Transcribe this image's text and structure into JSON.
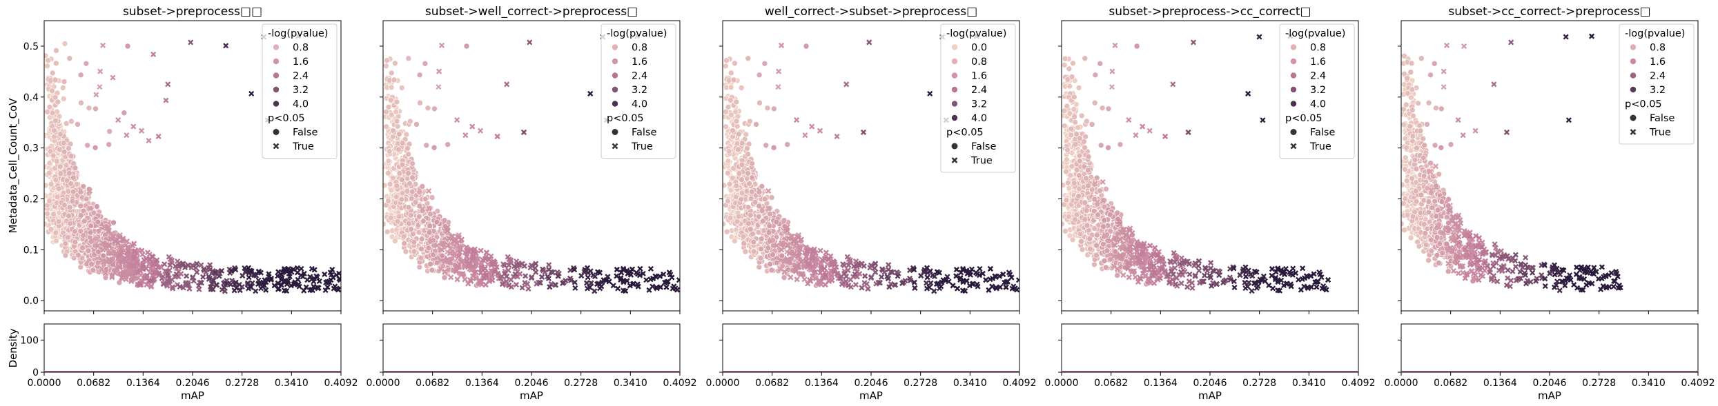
{
  "figure": {
    "background": "#ffffff"
  },
  "colors": {
    "palette_low": "#efd1c4",
    "palette_mid": "#c27d9b",
    "palette_high": "#2a1b3d",
    "legend_frame": "#cccccc"
  },
  "y_label": "Metadata_Cell_Count_CoV",
  "density_y_label": "Density",
  "x_label": "mAP",
  "x_ticks": [
    "0.0000",
    "0.0682",
    "0.1364",
    "0.2046",
    "0.2728",
    "0.3410",
    "0.4092"
  ],
  "y_ticks": [
    "0.0",
    "0.1",
    "0.2",
    "0.3",
    "0.4",
    "0.5"
  ],
  "density_y_ticks": [
    "0",
    "100"
  ],
  "chart_data": [
    {
      "type": "scatter",
      "title": "subset->preprocess□□",
      "xlim": [
        0,
        0.4092
      ],
      "ylim": [
        -0.02,
        0.55
      ],
      "hue": "-log(pvalue)",
      "style": "p<0.05",
      "legend": {
        "hue_title": "-log(pvalue)",
        "hue_levels": [
          "0.8",
          "1.6",
          "2.4",
          "3.2",
          "4.0"
        ],
        "style_title": "p<0.05",
        "style_levels": [
          "False",
          "True"
        ],
        "placement": "top-right"
      },
      "hue_max": 4.5,
      "n_points": 1500,
      "density": {
        "ylim": [
          0,
          150
        ]
      }
    },
    {
      "type": "scatter",
      "title": "subset->well_correct->preprocess□",
      "xlim": [
        0,
        0.4092
      ],
      "ylim": [
        -0.02,
        0.55
      ],
      "hue": "-log(pvalue)",
      "style": "p<0.05",
      "legend": {
        "hue_title": "-log(pvalue)",
        "hue_levels": [
          "0.8",
          "1.6",
          "2.4",
          "3.2",
          "4.0"
        ],
        "style_title": "p<0.05",
        "style_levels": [
          "False",
          "True"
        ],
        "placement": "top-right"
      },
      "hue_max": 4.5,
      "n_points": 1500,
      "density": {
        "ylim": [
          0,
          150
        ]
      }
    },
    {
      "type": "scatter",
      "title": "well_correct->subset->preprocess□",
      "xlim": [
        0,
        0.4092
      ],
      "ylim": [
        -0.02,
        0.55
      ],
      "hue": "-log(pvalue)",
      "style": "p<0.05",
      "legend": {
        "hue_title": "-log(pvalue)",
        "hue_levels": [
          "0.0",
          "0.8",
          "1.6",
          "2.4",
          "3.2",
          "4.0"
        ],
        "style_title": "p<0.05",
        "style_levels": [
          "False",
          "True"
        ],
        "placement": "top-right"
      },
      "hue_max": 4.5,
      "n_points": 1500,
      "density": {
        "ylim": [
          0,
          150
        ]
      }
    },
    {
      "type": "scatter",
      "title": "subset->preprocess->cc_correct□",
      "xlim": [
        0,
        0.4092
      ],
      "ylim": [
        -0.02,
        0.55
      ],
      "hue": "-log(pvalue)",
      "style": "p<0.05",
      "legend": {
        "hue_title": "-log(pvalue)",
        "hue_levels": [
          "0.8",
          "1.6",
          "2.4",
          "3.2",
          "4.0"
        ],
        "style_title": "p<0.05",
        "style_levels": [
          "False",
          "True"
        ],
        "placement": "top-right"
      },
      "hue_max": 4.5,
      "n_points": 1300,
      "density": {
        "ylim": [
          0,
          150
        ]
      }
    },
    {
      "type": "scatter",
      "title": "subset->cc_correct->preprocess□",
      "xlim": [
        0,
        0.4092
      ],
      "ylim": [
        -0.02,
        0.55
      ],
      "hue": "-log(pvalue)",
      "style": "p<0.05",
      "legend": {
        "hue_title": "-log(pvalue)",
        "hue_levels": [
          "0.8",
          "1.6",
          "2.4",
          "3.2"
        ],
        "style_title": "p<0.05",
        "style_levels": [
          "False",
          "True"
        ],
        "placement": "top-right"
      },
      "hue_max": 3.8,
      "n_points": 900,
      "density": {
        "ylim": [
          0,
          150
        ]
      }
    }
  ]
}
